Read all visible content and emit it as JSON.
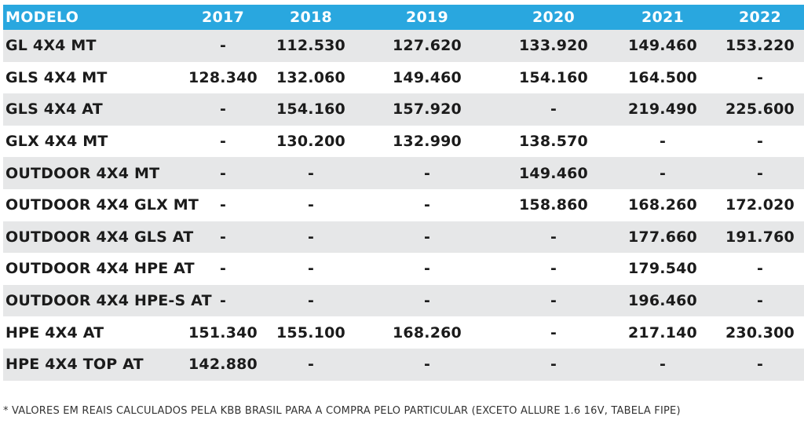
{
  "table": {
    "header": [
      "MODELO",
      "2017",
      "2018",
      "2019",
      "2020",
      "2021",
      "2022"
    ],
    "rows": [
      [
        "GL 4X4 MT",
        "-",
        "112.530",
        "127.620",
        "133.920",
        "149.460",
        "153.220"
      ],
      [
        "GLS 4X4 MT",
        "128.340",
        "132.060",
        "149.460",
        "154.160",
        "164.500",
        "-"
      ],
      [
        "GLS 4X4 AT",
        "-",
        "154.160",
        "157.920",
        "-",
        "219.490",
        "225.600"
      ],
      [
        "GLX 4X4 MT",
        "-",
        "130.200",
        "132.990",
        "138.570",
        "-",
        "-"
      ],
      [
        "OUTDOOR 4X4 MT",
        "-",
        "-",
        "-",
        "149.460",
        "-",
        "-"
      ],
      [
        "OUTDOOR 4X4 GLX MT",
        "-",
        "-",
        "-",
        "158.860",
        "168.260",
        "172.020"
      ],
      [
        "OUTDOOR 4X4 GLS AT",
        "-",
        "-",
        "-",
        "-",
        "177.660",
        "191.760"
      ],
      [
        "OUTDOOR 4X4 HPE AT",
        "-",
        "-",
        "-",
        "-",
        "179.540",
        "-"
      ],
      [
        "OUTDOOR 4X4 HPE-S AT",
        "-",
        "-",
        "-",
        "-",
        "196.460",
        "-"
      ],
      [
        "HPE 4X4 AT",
        "151.340",
        "155.100",
        "168.260",
        "-",
        "217.140",
        "230.300"
      ],
      [
        "HPE 4X4 TOP AT",
        "142.880",
        "-",
        "-",
        "-",
        "-",
        "-"
      ]
    ]
  },
  "footnote": "* VALORES EM REAIS CALCULADOS PELA KBB BRASIL PARA A COMPRA PELO PARTICULAR (EXCETO ALLURE 1.6 16V, TABELA FIPE)",
  "colors": {
    "header_bg": "#29a7df",
    "header_text": "#ffffff",
    "shaded_row": "#e6e7e8"
  }
}
